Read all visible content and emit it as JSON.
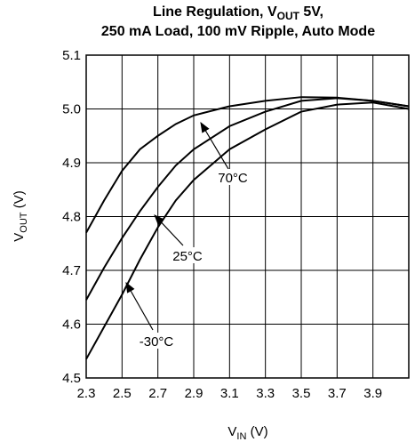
{
  "chart_data": {
    "type": "line",
    "title": [
      "Line Regulation, V",
      "OUT",
      " 5V,",
      "250 mA Load, 100 mV Ripple, Auto Mode"
    ],
    "xlabel": [
      "V",
      "IN",
      " (V)"
    ],
    "ylabel": [
      "V",
      "OUT",
      " (V)"
    ],
    "x": [
      2.3,
      2.4,
      2.5,
      2.6,
      2.7,
      2.8,
      2.9,
      3.1,
      3.3,
      3.5,
      3.7,
      3.9,
      4.1
    ],
    "series": [
      {
        "name": "70°C",
        "color": "#000000",
        "values": [
          4.77,
          4.83,
          4.885,
          4.925,
          4.95,
          4.972,
          4.988,
          5.005,
          5.015,
          5.022,
          5.021,
          5.015,
          5.005
        ]
      },
      {
        "name": "25°C",
        "color": "#000000",
        "values": [
          4.645,
          4.705,
          4.76,
          4.81,
          4.855,
          4.895,
          4.925,
          4.968,
          4.995,
          5.015,
          5.02,
          5.015,
          5.005
        ]
      },
      {
        "name": "-30°C",
        "color": "#000000",
        "values": [
          4.535,
          4.595,
          4.655,
          4.72,
          4.78,
          4.83,
          4.868,
          4.925,
          4.962,
          4.995,
          5.008,
          5.012,
          5.0
        ]
      }
    ],
    "xlim": [
      2.3,
      4.1
    ],
    "xticks": [
      2.3,
      2.5,
      2.7,
      2.9,
      3.1,
      3.3,
      3.5,
      3.7,
      3.9
    ],
    "ylim": [
      4.5,
      5.1
    ],
    "yticks": [
      4.5,
      4.6,
      4.7,
      4.8,
      4.9,
      {
        "value": 5,
        "label": "5.0"
      },
      5.1
    ],
    "grid": true
  }
}
